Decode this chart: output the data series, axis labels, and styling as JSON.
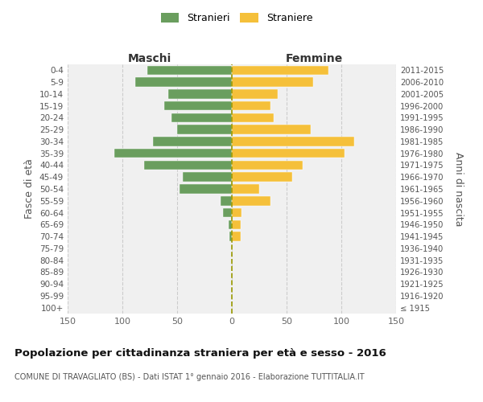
{
  "age_groups": [
    "100+",
    "95-99",
    "90-94",
    "85-89",
    "80-84",
    "75-79",
    "70-74",
    "65-69",
    "60-64",
    "55-59",
    "50-54",
    "45-49",
    "40-44",
    "35-39",
    "30-34",
    "25-29",
    "20-24",
    "15-19",
    "10-14",
    "5-9",
    "0-4"
  ],
  "birth_years": [
    "≤ 1915",
    "1916-1920",
    "1921-1925",
    "1926-1930",
    "1931-1935",
    "1936-1940",
    "1941-1945",
    "1946-1950",
    "1951-1955",
    "1956-1960",
    "1961-1965",
    "1966-1970",
    "1971-1975",
    "1976-1980",
    "1981-1985",
    "1986-1990",
    "1991-1995",
    "1996-2000",
    "2001-2005",
    "2006-2010",
    "2011-2015"
  ],
  "maschi": [
    0,
    0,
    0,
    0,
    0,
    0,
    2,
    3,
    8,
    10,
    48,
    45,
    80,
    107,
    72,
    50,
    55,
    62,
    58,
    88,
    77
  ],
  "femmine": [
    0,
    0,
    0,
    0,
    0,
    0,
    8,
    8,
    9,
    35,
    25,
    55,
    65,
    103,
    112,
    72,
    38,
    35,
    42,
    74,
    88
  ],
  "color_maschi": "#6a9e5e",
  "color_femmine": "#f5c03a",
  "title": "Popolazione per cittadinanza straniera per età e sesso - 2016",
  "subtitle": "COMUNE DI TRAVAGLIATO (BS) - Dati ISTAT 1° gennaio 2016 - Elaborazione TUTTITALIA.IT",
  "ylabel_left": "Fasce di età",
  "ylabel_right": "Anni di nascita",
  "xlabel_maschi": "Maschi",
  "xlabel_femmine": "Femmine",
  "legend_maschi": "Stranieri",
  "legend_femmine": "Straniere",
  "xlim": 150,
  "background_color": "#ffffff",
  "grid_color": "#cccccc",
  "axes_bg": "#f0f0f0"
}
